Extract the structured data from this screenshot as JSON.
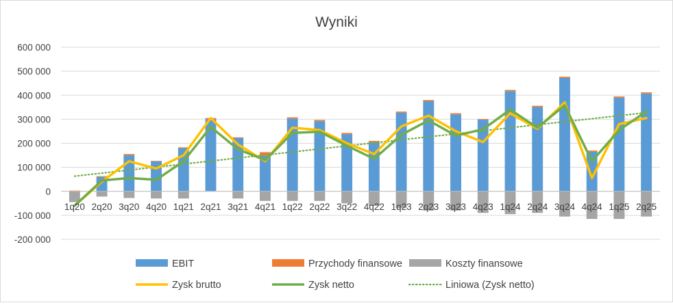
{
  "chart_data": {
    "type": "bar",
    "title": "Wyniki",
    "xlabel": "",
    "ylabel": "",
    "ylim": [
      -200000,
      600000
    ],
    "yticks": [
      -200000,
      -100000,
      0,
      100000,
      200000,
      300000,
      400000,
      500000,
      600000
    ],
    "ytick_labels": [
      "-200 000",
      "-100 000",
      "0",
      "100 000",
      "200 000",
      "300 000",
      "400 000",
      "500 000",
      "600 000"
    ],
    "grid": true,
    "legend_position": "bottom",
    "categories": [
      "1q20",
      "2q20",
      "3q20",
      "4q20",
      "1q21",
      "2q21",
      "3q21",
      "4q21",
      "1q22",
      "2q22",
      "3q22",
      "4q22",
      "1q23",
      "2q23",
      "3q23",
      "4q23",
      "1q24",
      "2q24",
      "3q24",
      "4q24",
      "1q25",
      "2q25"
    ],
    "bar_series": [
      {
        "name": "EBIT",
        "color": "#5b9bd5",
        "values": [
          0,
          60000,
          150000,
          125000,
          180000,
          300000,
          222000,
          148000,
          303000,
          292000,
          238000,
          205000,
          327000,
          375000,
          320000,
          298000,
          417000,
          351000,
          472000,
          165000,
          390000,
          407000
        ]
      },
      {
        "name": "Przychody finansowe",
        "color": "#ed7d31",
        "values": [
          3000,
          3000,
          5000,
          2000,
          3000,
          5000,
          3000,
          15000,
          5000,
          5000,
          5000,
          5000,
          5000,
          5000,
          5000,
          3000,
          5000,
          5000,
          5000,
          5000,
          5000,
          5000
        ]
      },
      {
        "name": "Koszty finansowe",
        "color": "#a5a5a5",
        "values": [
          -45000,
          -22000,
          -28000,
          -30000,
          -30000,
          0,
          -30000,
          -40000,
          -40000,
          -40000,
          -50000,
          -60000,
          -70000,
          -80000,
          -80000,
          -90000,
          -95000,
          -90000,
          -105000,
          -115000,
          -115000,
          -105000
        ]
      }
    ],
    "line_series": [
      {
        "name": "Zysk brutto",
        "color": "#ffc000",
        "values": [
          -60000,
          40000,
          125000,
          95000,
          150000,
          305000,
          195000,
          125000,
          265000,
          255000,
          200000,
          155000,
          270000,
          315000,
          250000,
          205000,
          325000,
          260000,
          370000,
          55000,
          280000,
          305000
        ]
      },
      {
        "name": "Zysk netto",
        "color": "#70ad47",
        "values": [
          -60000,
          45000,
          55000,
          48000,
          125000,
          268000,
          175000,
          130000,
          243000,
          248000,
          190000,
          135000,
          235000,
          295000,
          232000,
          258000,
          340000,
          265000,
          358000,
          125000,
          255000,
          332000
        ]
      }
    ],
    "trend_series": {
      "name": "Liniowa (Zysk netto)",
      "color": "#70ad47",
      "of": "Zysk netto"
    }
  }
}
